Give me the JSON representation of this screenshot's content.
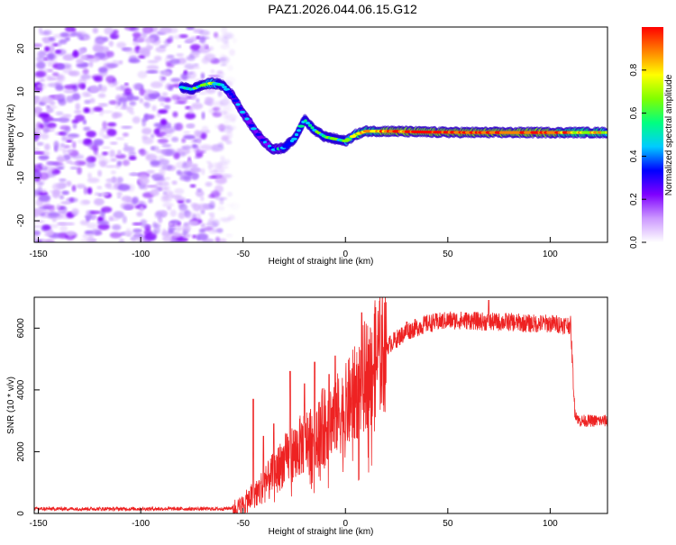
{
  "title": "PAZ1.2026.044.06.15.G12",
  "chart_data": [
    {
      "type": "heatmap",
      "title": "PAZ1.2026.044.06.15.G12",
      "xlabel": "Height of straight line (km)",
      "ylabel": "Frequency (Hz)",
      "xlim": [
        -152,
        128
      ],
      "ylim": [
        -25,
        25
      ],
      "xticks": [
        -150,
        -100,
        -50,
        0,
        50,
        100
      ],
      "yticks": [
        -20,
        -10,
        0,
        10,
        20
      ],
      "colorbar": {
        "label": "Normalized spectral amplitude",
        "range": [
          0,
          1
        ],
        "ticks": [
          "0.0",
          "0.2",
          "0.4",
          "0.6",
          "0.8"
        ],
        "colors": [
          "#ffffff",
          "#cc99ff",
          "#7f00ff",
          "#0000ff",
          "#00ccff",
          "#00ff80",
          "#80ff00",
          "#ffff00",
          "#ff8000",
          "#ff0000"
        ]
      },
      "ridge": {
        "x": [
          -80,
          -75,
          -70,
          -65,
          -60,
          -55,
          -50,
          -45,
          -40,
          -35,
          -30,
          -25,
          -20,
          -15,
          -10,
          -5,
          0,
          5,
          10,
          20,
          40,
          60,
          80,
          100,
          128
        ],
        "freq": [
          11,
          10.5,
          11.5,
          12,
          11.5,
          9,
          5,
          1.5,
          -1.5,
          -3.5,
          -3,
          -1,
          3.5,
          1,
          -0.5,
          -1,
          -1.5,
          0,
          0.8,
          0.8,
          0.6,
          0.5,
          0.5,
          0.5,
          0.5
        ],
        "amplitude": [
          0.45,
          0.5,
          0.55,
          0.6,
          0.5,
          0.35,
          0.3,
          0.3,
          0.35,
          0.35,
          0.4,
          0.4,
          0.45,
          0.5,
          0.5,
          0.55,
          0.55,
          0.7,
          0.8,
          0.9,
          0.95,
          0.95,
          0.95,
          0.9,
          0.7
        ]
      },
      "noise_region_km": [
        -152,
        -60
      ]
    },
    {
      "type": "line",
      "xlabel": "Height of straight line (km)",
      "ylabel": "SNR (10 * v/v)",
      "xlim": [
        -152,
        128
      ],
      "ylim": [
        0,
        7000
      ],
      "xticks": [
        -150,
        -100,
        -50,
        0,
        50,
        100
      ],
      "yticks": [
        0,
        2000,
        4000,
        6000
      ],
      "color": "#ee2222",
      "envelope": {
        "x": [
          -152,
          -60,
          -52,
          -48,
          -45,
          -40,
          -35,
          -30,
          -20,
          -10,
          0,
          5,
          10,
          15,
          20,
          30,
          40,
          50,
          60,
          70,
          80,
          90,
          100,
          110,
          112,
          114,
          128
        ],
        "y": [
          150,
          150,
          200,
          400,
          600,
          900,
          1300,
          1700,
          2300,
          2900,
          3400,
          3900,
          4500,
          5000,
          5400,
          5900,
          6150,
          6250,
          6250,
          6200,
          6200,
          6150,
          6150,
          6100,
          3300,
          3000,
          3000
        ]
      },
      "spikes": [
        [
          -45,
          3700
        ],
        [
          -40,
          2500
        ],
        [
          -35,
          2900
        ],
        [
          -27,
          4600
        ],
        [
          -20,
          4200
        ],
        [
          -15,
          4900
        ],
        [
          -8,
          4500
        ],
        [
          -5,
          5100
        ],
        [
          8,
          6500
        ],
        [
          30,
          6200
        ],
        [
          70,
          6900
        ]
      ]
    }
  ]
}
